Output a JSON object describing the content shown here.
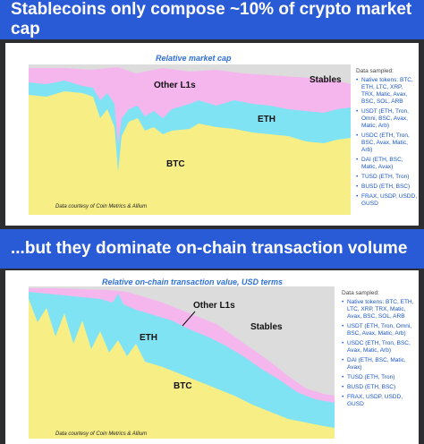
{
  "top": {
    "banner_title": "Stablecoins only compose ~10% of crypto market cap",
    "chart_title": "Relative market cap",
    "labels": {
      "other_l1s": "Other L1s",
      "eth": "ETH",
      "btc": "BTC",
      "stables": "Stables"
    },
    "credit": "Data courtesy of Coin Metrics & Allium",
    "legend": {
      "heading": "Data sampled:",
      "items": [
        "Native tokens: BTC, ETH, LTC, XRP, TRX, Matic, Avax, BSC, SOL, ARB",
        "USDT (ETH, Tron, Omni, BSC, Avax, Matic, Arb)",
        "USDC (ETH, Tron, BSC, Avax, Matic, Arb)",
        "DAI (ETH, BSC, Matic, Avax)",
        "TUSD (ETH, Tron)",
        "BUSD (ETH, BSC)",
        "FRAX, USDP, USDD, GUSD"
      ]
    }
  },
  "bottom": {
    "banner_title": "...but they dominate on-chain transaction volume",
    "chart_title": "Relative on-chain transaction value, USD terms",
    "labels": {
      "other_l1s": "Other L1s",
      "eth": "ETH",
      "btc": "BTC",
      "stables": "Stables"
    },
    "credit": "Data courtesy of Coin Metrics & Allium",
    "legend": {
      "heading": "Data sampled:",
      "items": [
        "Native tokens: BTC, ETH, LTC, XRP, TRX, Matic, Avax, BSC, SOL, ARB",
        "USDT (ETH, Tron, Omni, BSC, Avax, Matic, Arb)",
        "USDC (ETH, Tron, BSC, Avax, Matic, Arb)",
        "DAI (ETH, BSC, Matic, Avax)",
        "TUSD (ETH, Tron)",
        "BUSD (ETH, BSC)",
        "FRAX, USDP, USDD, GUSD"
      ]
    }
  },
  "colors": {
    "banner": "#2a5bd6",
    "btc": "#f7ef86",
    "eth": "#7fe3f3",
    "other_l1s": "#f5b6ee",
    "stables": "#dcdcdc",
    "legend_text": "#1a55c8"
  }
}
